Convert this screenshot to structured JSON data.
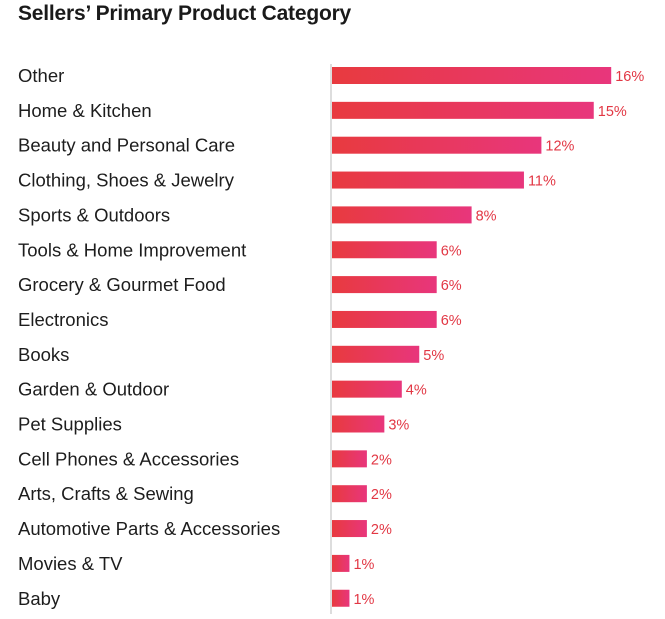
{
  "chart_data": {
    "type": "bar",
    "orientation": "horizontal",
    "title": "Sellers’ Primary Product Category",
    "categories": [
      "Other",
      "Home & Kitchen",
      "Beauty and Personal Care",
      "Clothing, Shoes & Jewelry",
      "Sports & Outdoors",
      "Tools & Home Improvement",
      "Grocery & Gourmet Food",
      "Electronics",
      "Books",
      "Garden & Outdoor",
      "Pet Supplies",
      "Cell Phones & Accessories",
      "Arts, Crafts & Sewing",
      "Automotive Parts & Accessories",
      "Movies & TV",
      "Baby"
    ],
    "values": [
      16,
      15,
      12,
      11,
      8,
      6,
      6,
      6,
      5,
      4,
      3,
      2,
      2,
      2,
      1,
      1
    ],
    "value_labels": [
      "16%",
      "15%",
      "12%",
      "11%",
      "8%",
      "6%",
      "6%",
      "6%",
      "5%",
      "4%",
      "3%",
      "2%",
      "2%",
      "2%",
      "1%",
      "1%"
    ],
    "xlim": [
      0,
      16
    ],
    "grid": false,
    "legend": "none",
    "colors": {
      "bar_start": "#e83a3f",
      "bar_end": "#e8367c",
      "label": "#e23744",
      "axis": "#bbbbbb"
    }
  }
}
